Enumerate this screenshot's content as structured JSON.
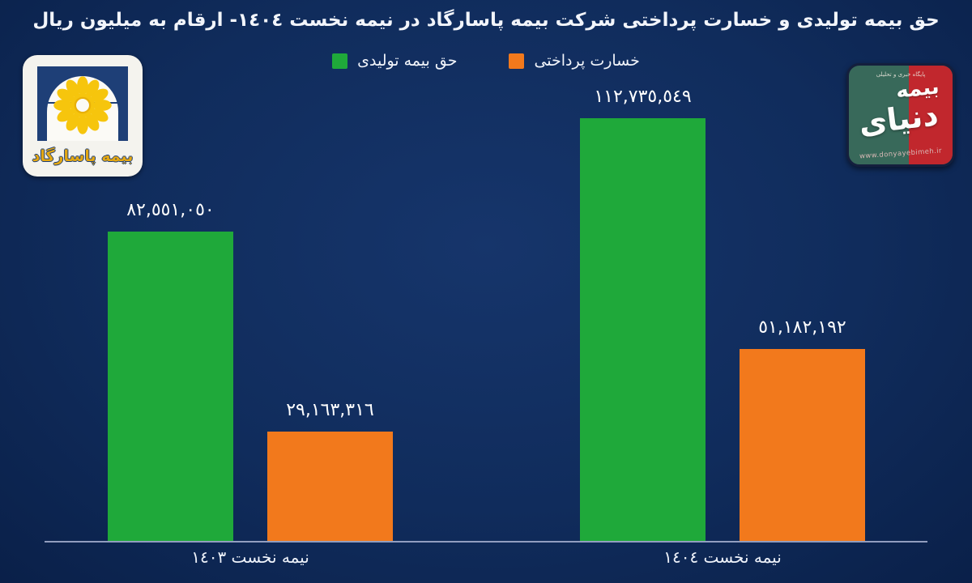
{
  "title": "حق بیمه تولیدی و خسارت پرداختی شرکت بیمه پاسارگاد در نیمه نخست ١٤٠٤- ارقام به میلیون ریال",
  "colors": {
    "background": "#102c5c",
    "premium_green": "#1fa93a",
    "loss_orange": "#f2791c",
    "axis_line": "#a9b3d2",
    "text": "#ffffff"
  },
  "logos": {
    "pasargad": {
      "label": "بیمه پاسارگاد",
      "flower_color": "#f6c50d",
      "frame_color": "#1e3f77"
    },
    "donyaye_bimeh": {
      "tagline": "پایگاه خبری و تحلیلی",
      "word1": "دنیای",
      "word2": "بیمه",
      "url": "www.donyayebimeh.ir",
      "green": "#38695a",
      "red": "#c1272d"
    }
  },
  "chart_data": {
    "type": "bar",
    "title": "حق بیمه تولیدی و خسارت پرداختی شرکت بیمه پاسارگاد در نیمه نخست ١٤٠٤- ارقام به میلیون ریال",
    "unit": "میلیون ریال",
    "categories": [
      "نیمه نخست ١٤٠٣",
      "نیمه نخست ١٤٠٤"
    ],
    "series": [
      {
        "name": "حق بیمه تولیدی",
        "color": "#1fa93a",
        "values": [
          82551050,
          112735549
        ],
        "labels": [
          "٨٢,٥٥١,٠٥٠",
          "١١٢,٧٣٥,٥٤٩"
        ]
      },
      {
        "name": "خسارت پرداختی",
        "color": "#f2791c",
        "values": [
          29163316,
          51182192
        ],
        "labels": [
          "٢٩,١٦٣,٣١٦",
          "٥١,١٨٢,١٩٢"
        ]
      }
    ],
    "ylim": [
      0,
      112735549
    ],
    "grid": false,
    "legend_position": "top-center",
    "value_labels_shown": true
  }
}
